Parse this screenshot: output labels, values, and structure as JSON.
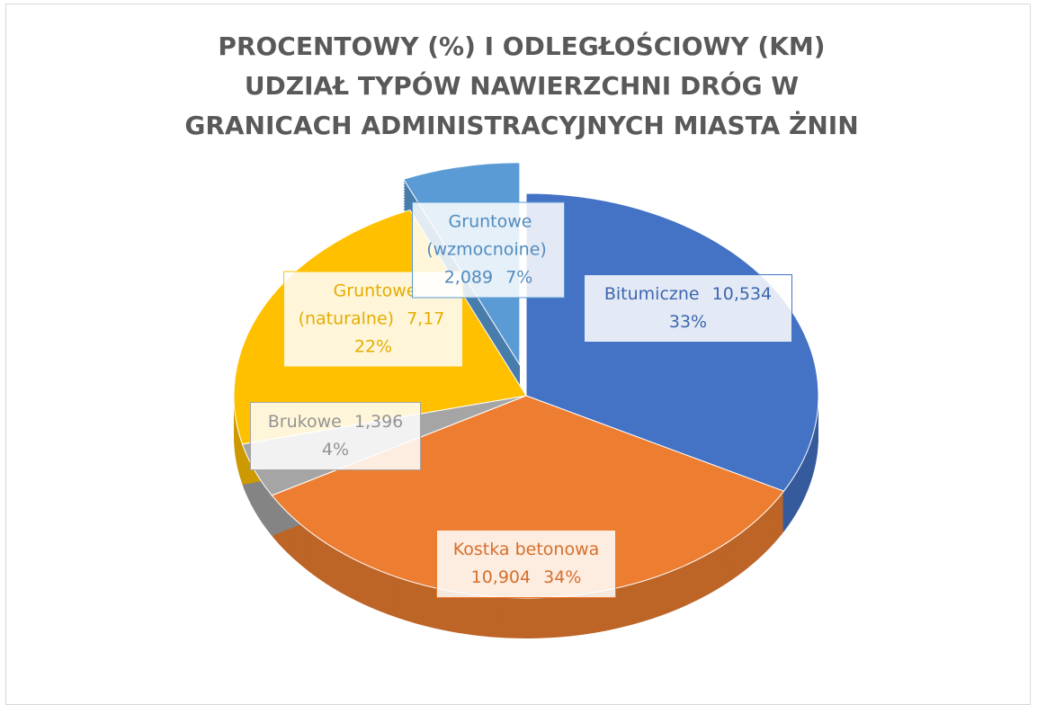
{
  "chart_data": {
    "type": "pie",
    "title": "PROCENTOWY (%) I ODLEGŁOŚCIOWY (KM) UDZIAŁ TYPÓW NAWIERZCHNI DRÓG W GRANICACH ADMINISTRACYJNYCH MIASTA ŻNIN",
    "categories": [
      "Bitumiczne",
      "Kostka betonowa",
      "Brukowe",
      "Gruntowe (naturalne)",
      "Gruntowe (wzmocnoine)"
    ],
    "values": [
      10.534,
      10.904,
      1.396,
      7.17,
      2.089
    ],
    "value_labels": [
      "10,534",
      "10,904",
      "1,396",
      "7,17",
      "2,089"
    ],
    "percents": [
      33,
      34,
      4,
      22,
      7
    ],
    "percent_labels": [
      "33%",
      "34%",
      "4%",
      "22%",
      "7%"
    ],
    "colors": [
      "#4472c4",
      "#ed7d31",
      "#a5a5a5",
      "#ffc000",
      "#5b9bd5"
    ]
  }
}
